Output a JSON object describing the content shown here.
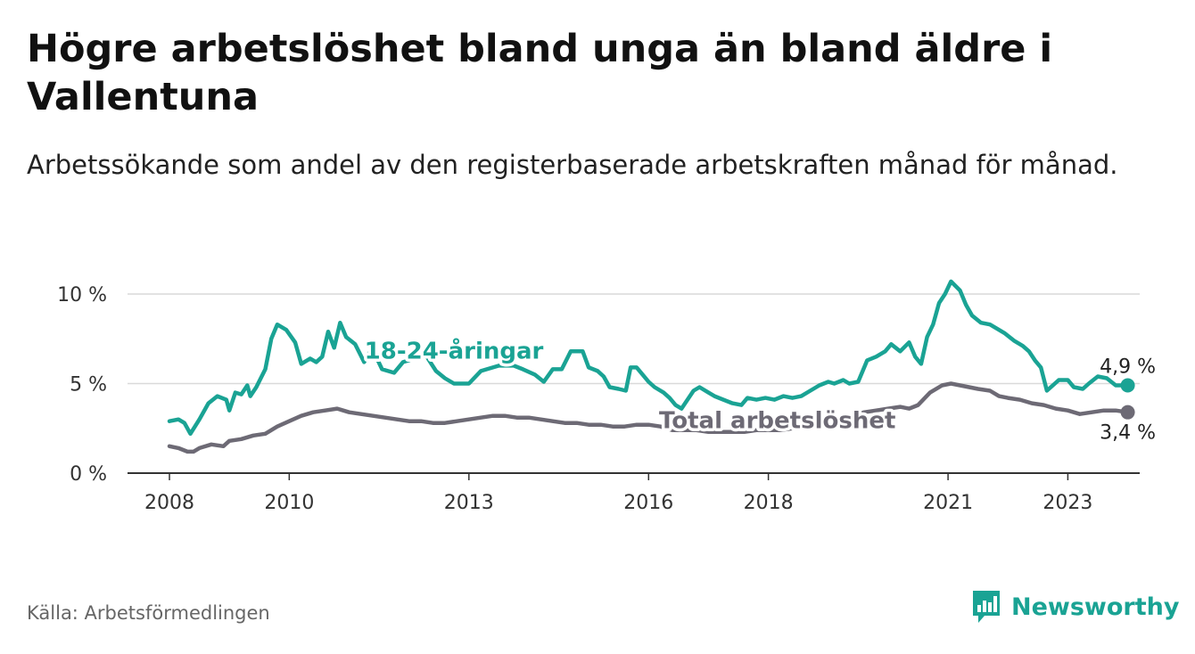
{
  "title": "Högre arbetslöshet bland unga än bland äldre i Vallentuna",
  "subtitle": "Arbetssökande som andel av den registerbaserade arbetskraften månad för månad.",
  "source": "Källa: Arbetsförmedlingen",
  "brand": {
    "name": "Newsworthy",
    "icon": "newsworthy-logo-icon",
    "color": "#1aa394"
  },
  "chart_data": {
    "type": "line",
    "title": "Högre arbetslöshet bland unga än bland äldre i Vallentuna",
    "xlabel": "",
    "ylabel": "",
    "x_ticks": [
      2008,
      2010,
      2013,
      2016,
      2018,
      2021,
      2023
    ],
    "x_tick_labels": [
      "2008",
      "2010",
      "2013",
      "2016",
      "2018",
      "2021",
      "2023"
    ],
    "y_ticks": [
      0,
      5,
      10
    ],
    "y_tick_labels": [
      "0 %",
      "5 %",
      "10 %"
    ],
    "xlim": [
      2007.3,
      2024.2
    ],
    "ylim": [
      0,
      10
    ],
    "grid": true,
    "series": [
      {
        "name": "18-24-åringar",
        "color": "#1aa394",
        "last_label": "4,9 %",
        "points": [
          [
            2008.0,
            2.9
          ],
          [
            2008.15,
            3.0
          ],
          [
            2008.25,
            2.8
          ],
          [
            2008.35,
            2.2
          ],
          [
            2008.5,
            3.0
          ],
          [
            2008.65,
            3.9
          ],
          [
            2008.8,
            4.3
          ],
          [
            2008.95,
            4.1
          ],
          [
            2009.0,
            3.5
          ],
          [
            2009.1,
            4.5
          ],
          [
            2009.2,
            4.4
          ],
          [
            2009.3,
            4.9
          ],
          [
            2009.35,
            4.3
          ],
          [
            2009.45,
            4.8
          ],
          [
            2009.6,
            5.8
          ],
          [
            2009.7,
            7.5
          ],
          [
            2009.8,
            8.3
          ],
          [
            2009.95,
            8.0
          ],
          [
            2010.1,
            7.3
          ],
          [
            2010.2,
            6.1
          ],
          [
            2010.35,
            6.4
          ],
          [
            2010.45,
            6.2
          ],
          [
            2010.55,
            6.5
          ],
          [
            2010.65,
            7.9
          ],
          [
            2010.75,
            7.0
          ],
          [
            2010.85,
            8.4
          ],
          [
            2010.95,
            7.6
          ],
          [
            2011.1,
            7.2
          ],
          [
            2011.25,
            6.2
          ],
          [
            2011.35,
            6.8
          ],
          [
            2011.45,
            6.5
          ],
          [
            2011.55,
            5.8
          ],
          [
            2011.75,
            5.6
          ],
          [
            2011.9,
            6.2
          ],
          [
            2012.0,
            6.3
          ],
          [
            2012.2,
            7.0
          ],
          [
            2012.45,
            5.7
          ],
          [
            2012.6,
            5.3
          ],
          [
            2012.75,
            5.0
          ],
          [
            2012.9,
            5.0
          ],
          [
            2013.0,
            5.0
          ],
          [
            2013.2,
            5.7
          ],
          [
            2013.5,
            6.0
          ],
          [
            2013.6,
            6.0
          ],
          [
            2013.75,
            6.0
          ],
          [
            2013.9,
            5.8
          ],
          [
            2014.1,
            5.5
          ],
          [
            2014.25,
            5.1
          ],
          [
            2014.4,
            5.8
          ],
          [
            2014.55,
            5.8
          ],
          [
            2014.7,
            6.8
          ],
          [
            2014.9,
            6.8
          ],
          [
            2015.0,
            5.9
          ],
          [
            2015.15,
            5.7
          ],
          [
            2015.25,
            5.4
          ],
          [
            2015.35,
            4.8
          ],
          [
            2015.5,
            4.7
          ],
          [
            2015.62,
            4.6
          ],
          [
            2015.7,
            5.9
          ],
          [
            2015.8,
            5.9
          ],
          [
            2015.9,
            5.5
          ],
          [
            2016.0,
            5.1
          ],
          [
            2016.1,
            4.8
          ],
          [
            2016.25,
            4.5
          ],
          [
            2016.35,
            4.2
          ],
          [
            2016.45,
            3.8
          ],
          [
            2016.55,
            3.6
          ],
          [
            2016.65,
            4.1
          ],
          [
            2016.75,
            4.6
          ],
          [
            2016.85,
            4.8
          ],
          [
            2017.0,
            4.5
          ],
          [
            2017.1,
            4.3
          ],
          [
            2017.25,
            4.1
          ],
          [
            2017.4,
            3.9
          ],
          [
            2017.55,
            3.8
          ],
          [
            2017.65,
            4.2
          ],
          [
            2017.8,
            4.1
          ],
          [
            2017.95,
            4.2
          ],
          [
            2018.1,
            4.1
          ],
          [
            2018.25,
            4.3
          ],
          [
            2018.4,
            4.2
          ],
          [
            2018.55,
            4.3
          ],
          [
            2018.7,
            4.6
          ],
          [
            2018.85,
            4.9
          ],
          [
            2019.0,
            5.1
          ],
          [
            2019.1,
            5.0
          ],
          [
            2019.25,
            5.2
          ],
          [
            2019.35,
            5.0
          ],
          [
            2019.5,
            5.1
          ],
          [
            2019.65,
            6.3
          ],
          [
            2019.8,
            6.5
          ],
          [
            2019.95,
            6.8
          ],
          [
            2020.05,
            7.2
          ],
          [
            2020.2,
            6.8
          ],
          [
            2020.35,
            7.3
          ],
          [
            2020.45,
            6.5
          ],
          [
            2020.55,
            6.1
          ],
          [
            2020.65,
            7.6
          ],
          [
            2020.75,
            8.3
          ],
          [
            2020.85,
            9.5
          ],
          [
            2020.95,
            10.0
          ],
          [
            2021.05,
            10.7
          ],
          [
            2021.2,
            10.2
          ],
          [
            2021.3,
            9.4
          ],
          [
            2021.4,
            8.8
          ],
          [
            2021.55,
            8.4
          ],
          [
            2021.7,
            8.3
          ],
          [
            2021.85,
            8.0
          ],
          [
            2021.95,
            7.8
          ],
          [
            2022.1,
            7.4
          ],
          [
            2022.25,
            7.1
          ],
          [
            2022.35,
            6.8
          ],
          [
            2022.45,
            6.3
          ],
          [
            2022.55,
            5.9
          ],
          [
            2022.65,
            4.6
          ],
          [
            2022.85,
            5.2
          ],
          [
            2023.0,
            5.2
          ],
          [
            2023.1,
            4.8
          ],
          [
            2023.25,
            4.7
          ],
          [
            2023.35,
            5.0
          ],
          [
            2023.5,
            5.4
          ],
          [
            2023.65,
            5.3
          ],
          [
            2023.8,
            4.9
          ],
          [
            2024.0,
            4.9
          ]
        ]
      },
      {
        "name": "Total arbetslöshet",
        "color": "#6d6a75",
        "last_label": "3,4 %",
        "points": [
          [
            2008.0,
            1.5
          ],
          [
            2008.15,
            1.4
          ],
          [
            2008.3,
            1.2
          ],
          [
            2008.4,
            1.2
          ],
          [
            2008.5,
            1.4
          ],
          [
            2008.7,
            1.6
          ],
          [
            2008.9,
            1.5
          ],
          [
            2009.0,
            1.8
          ],
          [
            2009.2,
            1.9
          ],
          [
            2009.4,
            2.1
          ],
          [
            2009.6,
            2.2
          ],
          [
            2009.8,
            2.6
          ],
          [
            2010.0,
            2.9
          ],
          [
            2010.2,
            3.2
          ],
          [
            2010.4,
            3.4
          ],
          [
            2010.6,
            3.5
          ],
          [
            2010.8,
            3.6
          ],
          [
            2011.0,
            3.4
          ],
          [
            2011.2,
            3.3
          ],
          [
            2011.4,
            3.2
          ],
          [
            2011.6,
            3.1
          ],
          [
            2011.8,
            3.0
          ],
          [
            2012.0,
            2.9
          ],
          [
            2012.2,
            2.9
          ],
          [
            2012.4,
            2.8
          ],
          [
            2012.6,
            2.8
          ],
          [
            2012.8,
            2.9
          ],
          [
            2013.0,
            3.0
          ],
          [
            2013.2,
            3.1
          ],
          [
            2013.4,
            3.2
          ],
          [
            2013.6,
            3.2
          ],
          [
            2013.8,
            3.1
          ],
          [
            2014.0,
            3.1
          ],
          [
            2014.2,
            3.0
          ],
          [
            2014.4,
            2.9
          ],
          [
            2014.6,
            2.8
          ],
          [
            2014.8,
            2.8
          ],
          [
            2015.0,
            2.7
          ],
          [
            2015.2,
            2.7
          ],
          [
            2015.4,
            2.6
          ],
          [
            2015.6,
            2.6
          ],
          [
            2015.8,
            2.7
          ],
          [
            2016.0,
            2.7
          ],
          [
            2016.2,
            2.6
          ],
          [
            2016.4,
            2.4
          ],
          [
            2016.6,
            2.4
          ],
          [
            2016.8,
            2.4
          ],
          [
            2017.0,
            2.3
          ],
          [
            2017.2,
            2.3
          ],
          [
            2017.4,
            2.3
          ],
          [
            2017.6,
            2.3
          ],
          [
            2017.8,
            2.4
          ],
          [
            2018.0,
            2.4
          ],
          [
            2018.2,
            2.4
          ],
          [
            2018.4,
            2.5
          ],
          [
            2018.6,
            2.6
          ],
          [
            2018.8,
            2.7
          ],
          [
            2019.0,
            2.8
          ],
          [
            2019.2,
            3.0
          ],
          [
            2019.4,
            3.2
          ],
          [
            2019.6,
            3.4
          ],
          [
            2019.8,
            3.5
          ],
          [
            2020.0,
            3.6
          ],
          [
            2020.2,
            3.7
          ],
          [
            2020.35,
            3.6
          ],
          [
            2020.5,
            3.8
          ],
          [
            2020.7,
            4.5
          ],
          [
            2020.9,
            4.9
          ],
          [
            2021.05,
            5.0
          ],
          [
            2021.2,
            4.9
          ],
          [
            2021.35,
            4.8
          ],
          [
            2021.5,
            4.7
          ],
          [
            2021.7,
            4.6
          ],
          [
            2021.85,
            4.3
          ],
          [
            2022.0,
            4.2
          ],
          [
            2022.2,
            4.1
          ],
          [
            2022.4,
            3.9
          ],
          [
            2022.6,
            3.8
          ],
          [
            2022.8,
            3.6
          ],
          [
            2023.0,
            3.5
          ],
          [
            2023.2,
            3.3
          ],
          [
            2023.4,
            3.4
          ],
          [
            2023.6,
            3.5
          ],
          [
            2023.8,
            3.5
          ],
          [
            2024.0,
            3.4
          ]
        ]
      }
    ],
    "annotations": [
      {
        "text": "18-24-åringar",
        "series": "18-24-åringar",
        "x": 2012.75,
        "y": 6.8
      },
      {
        "text": "Total arbetslöshet",
        "series": "Total arbetslöshet",
        "x": 2018.15,
        "y": 2.9
      }
    ]
  }
}
